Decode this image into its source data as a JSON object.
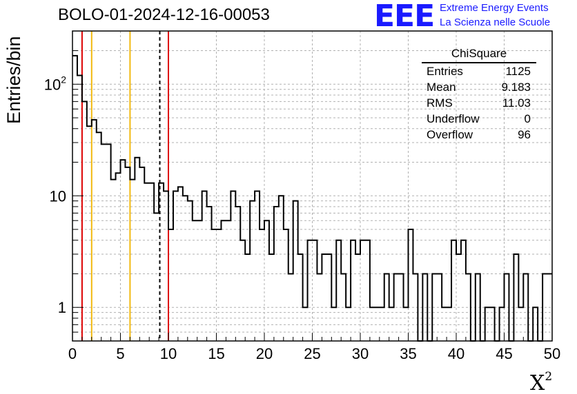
{
  "chart_data": {
    "type": "histogram",
    "title": "BOLO-01-2024-12-16-00053",
    "xlabel": "X",
    "xlabel_superscript": "2",
    "ylabel": "Entries/bin",
    "xlim": [
      0,
      50
    ],
    "ylim": [
      0.5,
      300
    ],
    "yscale": "log",
    "grid": true,
    "bin_width": 0.5,
    "x_ticks": [
      "0",
      "5",
      "10",
      "15",
      "20",
      "25",
      "30",
      "35",
      "40",
      "45",
      "50"
    ],
    "y_ticks": [
      {
        "value": 1,
        "label": "1"
      },
      {
        "value": 10,
        "label": "10"
      },
      {
        "value": 100,
        "label": "10",
        "exponent": "2"
      }
    ],
    "bin_counts": [
      180,
      120,
      70,
      42,
      48,
      37,
      29,
      29,
      14,
      16,
      21,
      18,
      14,
      22,
      18,
      13,
      13,
      7,
      13,
      11,
      5,
      11,
      12,
      10,
      9,
      6,
      6,
      11,
      8,
      5,
      5,
      6,
      6,
      11,
      8,
      4,
      3,
      9,
      11,
      5,
      6,
      3,
      8,
      10,
      5,
      2,
      9,
      3,
      1,
      4,
      4,
      2,
      3,
      3,
      1,
      4,
      2,
      1,
      4,
      3,
      4,
      4,
      1,
      1,
      1,
      2,
      1,
      2,
      2,
      1,
      5,
      2,
      0,
      2,
      0,
      2,
      2,
      1,
      1,
      4,
      3,
      4,
      2,
      0,
      2,
      0,
      1,
      1,
      0,
      1,
      2,
      0,
      3,
      1,
      2,
      0,
      1,
      0,
      2,
      2
    ],
    "vertical_lines": [
      {
        "x": 1,
        "color": "#dd0000",
        "style": "solid"
      },
      {
        "x": 2,
        "color": "#f2b90f",
        "style": "solid"
      },
      {
        "x": 6,
        "color": "#f2b90f",
        "style": "solid"
      },
      {
        "x": 9.1,
        "color": "#000000",
        "style": "dashed"
      },
      {
        "x": 10,
        "color": "#dd0000",
        "style": "solid"
      }
    ]
  },
  "logo": {
    "mark": "EEE",
    "line1": "Extreme Energy Events",
    "line2": "La Scienza nelle Scuole",
    "color": "#1a1aff"
  },
  "stats": {
    "title": "ChiSquare",
    "rows": [
      {
        "label": "Entries",
        "value": "1125"
      },
      {
        "label": "Mean",
        "value": "9.183"
      },
      {
        "label": "RMS",
        "value": "11.03"
      },
      {
        "label": "Underflow",
        "value": "0"
      },
      {
        "label": "Overflow",
        "value": "96"
      }
    ]
  }
}
